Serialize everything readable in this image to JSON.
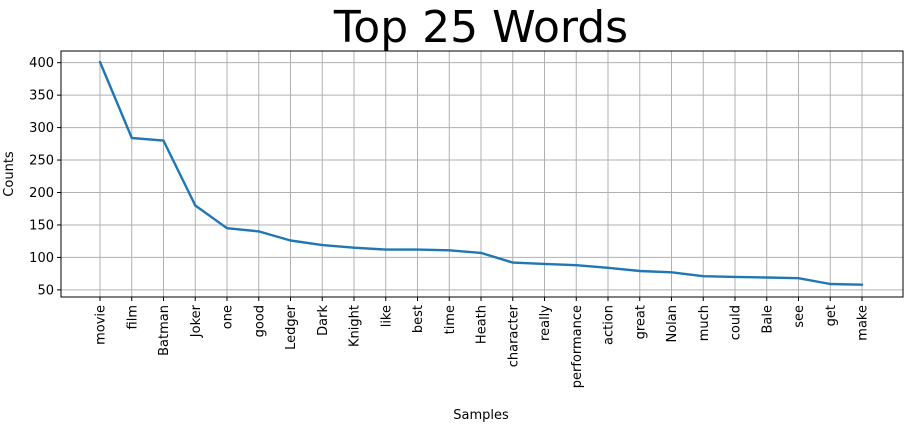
{
  "chart_data": {
    "type": "line",
    "title": "Top 25 Words",
    "xlabel": "Samples",
    "ylabel": "Counts",
    "grid": true,
    "line_color": "#1f77b4",
    "categories": [
      "movie",
      "film",
      "Batman",
      "Joker",
      "one",
      "good",
      "Ledger",
      "Dark",
      "Knight",
      "like",
      "best",
      "time",
      "Heath",
      "character",
      "really",
      "performance",
      "action",
      "great",
      "Nolan",
      "much",
      "could",
      "Bale",
      "see",
      "get",
      "make"
    ],
    "values": [
      401,
      284,
      280,
      180,
      145,
      140,
      126,
      119,
      115,
      112,
      112,
      111,
      107,
      92,
      90,
      88,
      84,
      79,
      77,
      71,
      70,
      69,
      68,
      59,
      58
    ],
    "yticks": [
      50,
      100,
      150,
      200,
      250,
      300,
      350,
      400
    ],
    "ylim": [
      39,
      418
    ]
  }
}
